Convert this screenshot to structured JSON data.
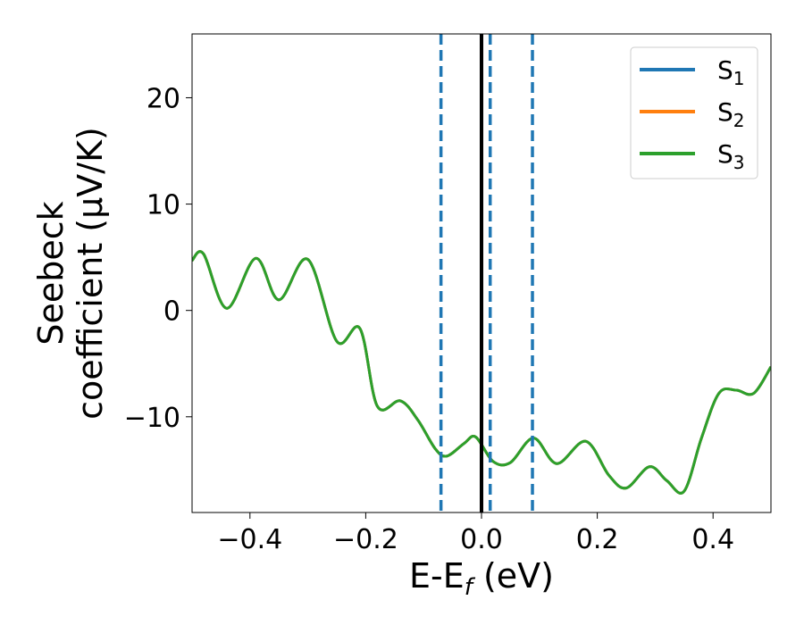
{
  "chart_data": {
    "type": "line",
    "xlabel_main": "E-E",
    "xlabel_sub": "f",
    "xlabel_unit": " (eV)",
    "ylabel_line1": "Seebeck",
    "ylabel_line2": "coefficient  (μV/K)",
    "xlim": [
      -0.5,
      0.5
    ],
    "ylim": [
      -19,
      26
    ],
    "grid": false,
    "legend_position": "top-right",
    "xticks": [
      {
        "v": -0.4,
        "label": "−0.4"
      },
      {
        "v": -0.2,
        "label": "−0.2"
      },
      {
        "v": 0.0,
        "label": "0.0"
      },
      {
        "v": 0.2,
        "label": "0.2"
      },
      {
        "v": 0.4,
        "label": "0.4"
      }
    ],
    "yticks": [
      {
        "v": 20,
        "label": "20"
      },
      {
        "v": 10,
        "label": "10"
      },
      {
        "v": 0,
        "label": "0"
      },
      {
        "v": -10,
        "label": "−10"
      }
    ],
    "series": [
      {
        "name_main": "S",
        "name_sub": "1",
        "color": "#1f77b4",
        "x": [
          -0.5,
          -0.48,
          -0.44,
          -0.39,
          -0.35,
          -0.3,
          -0.25,
          -0.21,
          -0.18,
          -0.14,
          -0.11,
          -0.08,
          -0.06,
          -0.03,
          -0.01,
          0.02,
          0.05,
          0.09,
          0.13,
          0.18,
          0.22,
          0.25,
          0.29,
          0.32,
          0.35,
          0.38,
          0.41,
          0.44,
          0.47,
          0.5
        ],
        "y": [
          4.7,
          5.3,
          0.2,
          4.9,
          1.0,
          4.8,
          -2.9,
          -1.7,
          -9.0,
          -8.5,
          -10.3,
          -13.0,
          -13.7,
          -12.5,
          -11.9,
          -14.2,
          -14.3,
          -12.0,
          -14.4,
          -12.3,
          -15.5,
          -16.7,
          -14.7,
          -16.0,
          -17.0,
          -12.0,
          -7.8,
          -7.5,
          -7.8,
          -5.3
        ]
      },
      {
        "name_main": "S",
        "name_sub": "2",
        "color": "#ff7f0e",
        "x": [
          -0.5,
          -0.48,
          -0.44,
          -0.39,
          -0.35,
          -0.3,
          -0.25,
          -0.21,
          -0.18,
          -0.14,
          -0.11,
          -0.08,
          -0.06,
          -0.03,
          -0.01,
          0.02,
          0.05,
          0.09,
          0.13,
          0.18,
          0.22,
          0.25,
          0.29,
          0.32,
          0.35,
          0.38,
          0.41,
          0.44,
          0.47,
          0.5
        ],
        "y": [
          4.7,
          5.3,
          0.2,
          4.9,
          1.0,
          4.8,
          -2.9,
          -1.7,
          -9.0,
          -8.5,
          -10.3,
          -13.0,
          -13.7,
          -12.5,
          -11.9,
          -14.2,
          -14.3,
          -12.0,
          -14.4,
          -12.3,
          -15.5,
          -16.7,
          -14.7,
          -16.0,
          -17.0,
          -12.0,
          -7.8,
          -7.5,
          -7.8,
          -5.3
        ]
      },
      {
        "name_main": "S",
        "name_sub": "3",
        "color": "#2ca02c",
        "x": [
          -0.5,
          -0.48,
          -0.44,
          -0.39,
          -0.35,
          -0.3,
          -0.25,
          -0.21,
          -0.18,
          -0.14,
          -0.11,
          -0.08,
          -0.06,
          -0.03,
          -0.01,
          0.02,
          0.05,
          0.09,
          0.13,
          0.18,
          0.22,
          0.25,
          0.29,
          0.32,
          0.35,
          0.38,
          0.41,
          0.44,
          0.47,
          0.5
        ],
        "y": [
          4.7,
          5.3,
          0.2,
          4.9,
          1.0,
          4.8,
          -2.9,
          -1.7,
          -9.0,
          -8.5,
          -10.3,
          -13.0,
          -13.7,
          -12.5,
          -11.9,
          -14.2,
          -14.3,
          -12.0,
          -14.4,
          -12.3,
          -15.5,
          -16.7,
          -14.7,
          -16.0,
          -17.0,
          -12.0,
          -7.8,
          -7.5,
          -7.8,
          -5.3
        ]
      }
    ],
    "vlines": [
      {
        "x": -0.07,
        "style": "dashed",
        "color": "#1f77b4"
      },
      {
        "x": 0.0,
        "style": "solid",
        "color": "#000000"
      },
      {
        "x": 0.015,
        "style": "dashed",
        "color": "#1f77b4"
      },
      {
        "x": 0.088,
        "style": "dashed",
        "color": "#1f77b4"
      }
    ]
  }
}
